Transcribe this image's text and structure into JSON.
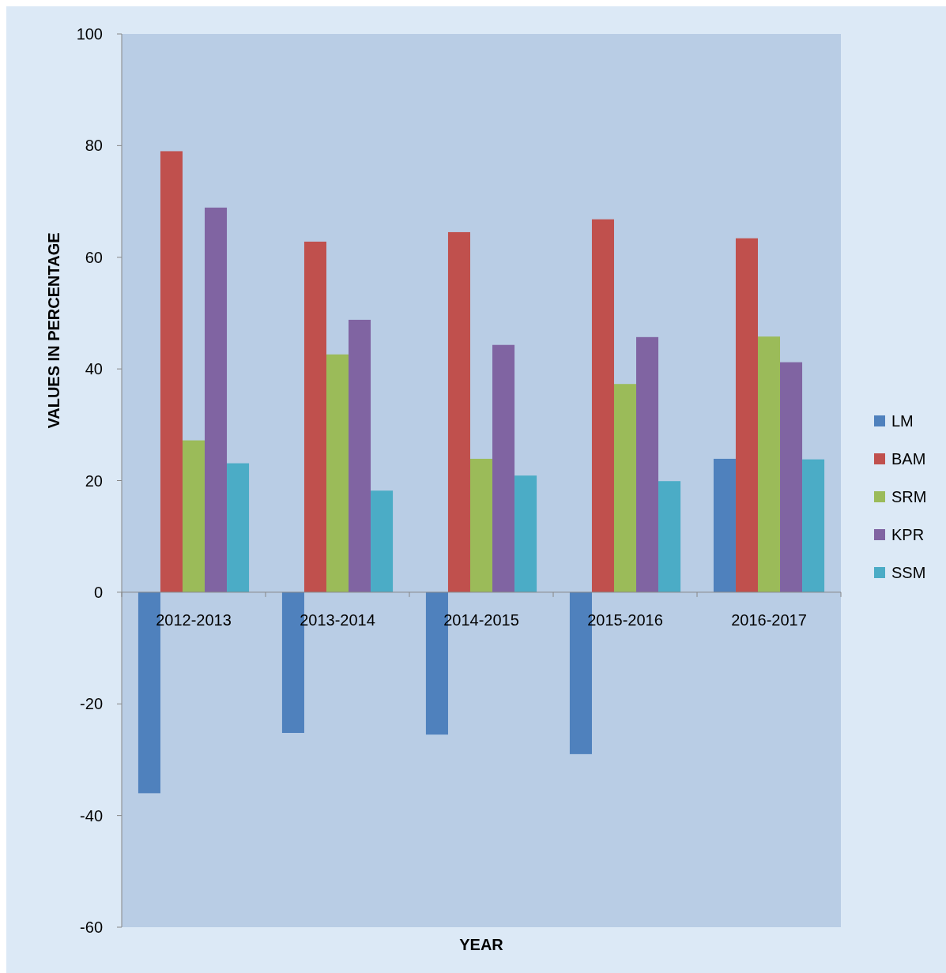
{
  "chart_data": {
    "type": "bar",
    "xlabel": "YEAR",
    "ylabel": "VALUES IN PERCENTAGE",
    "categories": [
      "2012-2013",
      "2013-2014",
      "2014-2015",
      "2015-2016",
      "2016-2017"
    ],
    "series": [
      {
        "name": "LM",
        "color": "#4f81bd",
        "values": [
          -36,
          -25.2,
          -25.5,
          -29,
          23.9
        ]
      },
      {
        "name": "BAM",
        "color": "#c0504d",
        "values": [
          79,
          62.8,
          64.5,
          66.8,
          63.4
        ]
      },
      {
        "name": "SRM",
        "color": "#9bbb59",
        "values": [
          27.2,
          42.6,
          23.9,
          37.3,
          45.8
        ]
      },
      {
        "name": "KPR",
        "color": "#8064a2",
        "values": [
          68.9,
          48.8,
          44.3,
          45.7,
          41.2
        ]
      },
      {
        "name": "SSM",
        "color": "#4bacc6",
        "values": [
          23.1,
          18.2,
          20.9,
          19.9,
          23.8
        ]
      }
    ],
    "ylim": [
      -60,
      100
    ],
    "yticks": [
      -60,
      -40,
      -20,
      0,
      20,
      40,
      60,
      80,
      100
    ],
    "grid": false,
    "legend": "right"
  }
}
